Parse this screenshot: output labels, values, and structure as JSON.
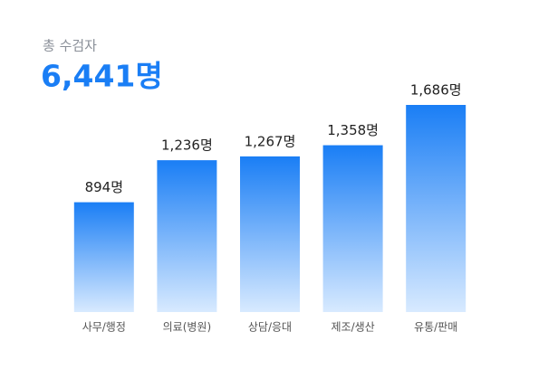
{
  "chart_data": {
    "type": "bar",
    "subtitle": "총 수검자",
    "title": "6,441명",
    "categories": [
      "사무/행정",
      "의료(병원)",
      "상담/응대",
      "제조/생산",
      "유통/판매"
    ],
    "values": [
      894,
      1236,
      1267,
      1358,
      1686
    ],
    "value_labels": [
      "894명",
      "1,236명",
      "1,267명",
      "1,358명",
      "1,686명"
    ],
    "color": "#1a7ef5"
  }
}
